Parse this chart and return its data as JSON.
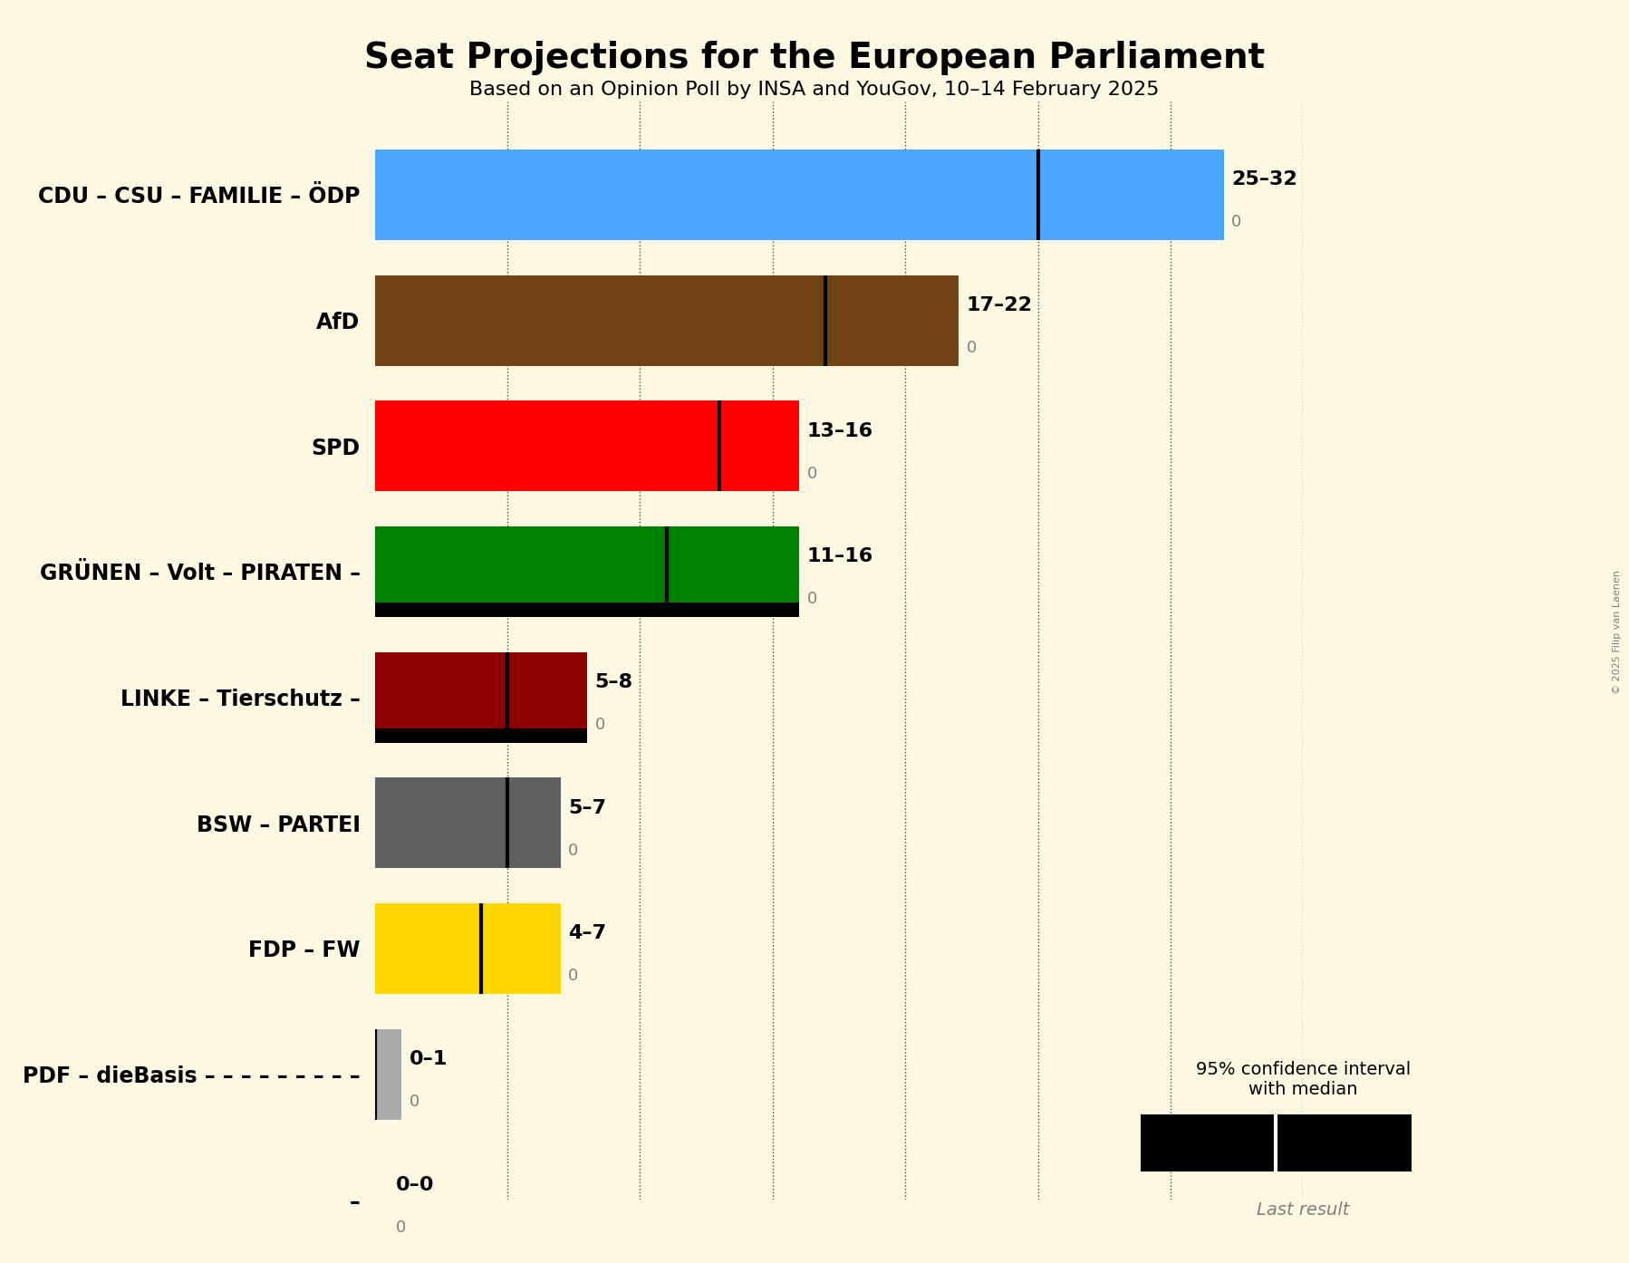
{
  "title": "Seat Projections for the European Parliament",
  "subtitle": "Based on an Opinion Poll by INSA and YouGov, 10–14 February 2025",
  "copyright": "© 2025 Filip van Laenen",
  "background_color": "#fdf8e1",
  "parties": [
    {
      "name": "CDU – CSU – FAMILIE – ÖDP",
      "median": 25,
      "low": 25,
      "high": 32,
      "last": 0,
      "color": "#4da6ff",
      "ci_type": "cross_diag",
      "black_bar": false,
      "label": "25–32",
      "last_label": "0"
    },
    {
      "name": "AfD",
      "median": 17,
      "low": 17,
      "high": 22,
      "last": 0,
      "color": "#704214",
      "ci_type": "cross_diag",
      "black_bar": false,
      "label": "17–22",
      "last_label": "0"
    },
    {
      "name": "SPD",
      "median": 13,
      "low": 13,
      "high": 16,
      "last": 0,
      "color": "#ff0000",
      "ci_type": "diag_only",
      "black_bar": false,
      "label": "13–16",
      "last_label": "0"
    },
    {
      "name": "GRÜNEN – Volt – PIRATEN –",
      "median": 11,
      "low": 11,
      "high": 16,
      "last": 0,
      "color": "#008000",
      "ci_type": "cross_diag",
      "black_bar": true,
      "label": "11–16",
      "last_label": "0"
    },
    {
      "name": "LINKE – Tierschutz –",
      "median": 5,
      "low": 5,
      "high": 8,
      "last": 0,
      "color": "#8b0000",
      "ci_type": "cross_diag",
      "black_bar": true,
      "label": "5–8",
      "last_label": "0"
    },
    {
      "name": "BSW – PARTEI",
      "median": 5,
      "low": 5,
      "high": 7,
      "last": 0,
      "color": "#606060",
      "ci_type": "cross_diag",
      "black_bar": false,
      "label": "5–7",
      "last_label": "0"
    },
    {
      "name": "FDP – FW",
      "median": 4,
      "low": 4,
      "high": 7,
      "last": 0,
      "color": "#ffd700",
      "ci_type": "diag_only",
      "black_bar": false,
      "label": "4–7",
      "last_label": "0"
    },
    {
      "name": "PDF – dieBasis – – – – – – – – –",
      "median": 0,
      "low": 0,
      "high": 1,
      "last": 0,
      "color": "#aaaaaa",
      "ci_type": "diag_only",
      "black_bar": false,
      "label": "0–1",
      "last_label": "0"
    },
    {
      "name": "–",
      "median": 0,
      "low": 0,
      "high": 0,
      "last": 0,
      "color": "#000000",
      "ci_type": "none",
      "black_bar": false,
      "label": "0–0",
      "last_label": "0"
    }
  ],
  "xlim": [
    0,
    35
  ],
  "xticks": [
    0,
    5,
    10,
    15,
    20,
    25,
    30,
    35
  ],
  "bar_height": 0.72
}
